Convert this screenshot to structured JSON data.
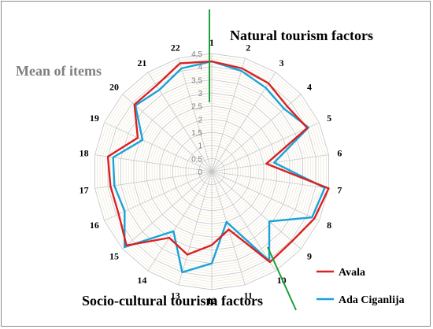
{
  "chart_data": {
    "type": "radar",
    "categories": [
      "1",
      "2",
      "3",
      "4",
      "5",
      "6",
      "7",
      "8",
      "9",
      "10",
      "11",
      "12",
      "13",
      "14",
      "15",
      "16",
      "17",
      "18",
      "19",
      "20",
      "21",
      "22"
    ],
    "ticks": [
      "0",
      "0,5",
      "1",
      "1,5",
      "2",
      "2,5",
      "3",
      "3,5",
      "4",
      "4,5"
    ],
    "rmax": 4.5,
    "series": [
      {
        "name": "Avala",
        "color": "#d92121",
        "values": [
          4.2,
          4.1,
          4.0,
          3.8,
          4.0,
          2.1,
          4.5,
          4.3,
          4.05,
          4.1,
          2.3,
          2.8,
          3.3,
          3.0,
          4.3,
          3.9,
          3.9,
          4.0,
          3.1,
          3.9,
          3.9,
          4.3
        ]
      },
      {
        "name": "Ada Ciganlija",
        "color": "#1aa3d9",
        "values": [
          4.2,
          4.0,
          3.8,
          3.65,
          4.05,
          2.4,
          4.35,
          4.2,
          2.9,
          4.05,
          2.0,
          3.5,
          4.0,
          2.7,
          4.4,
          3.65,
          3.75,
          3.8,
          2.9,
          3.85,
          3.7,
          4.1
        ]
      }
    ],
    "annotations": {
      "natural": "Natural tourism factors",
      "socio": "Socio-cultural tourism factors",
      "mean": "Mean of items"
    }
  }
}
